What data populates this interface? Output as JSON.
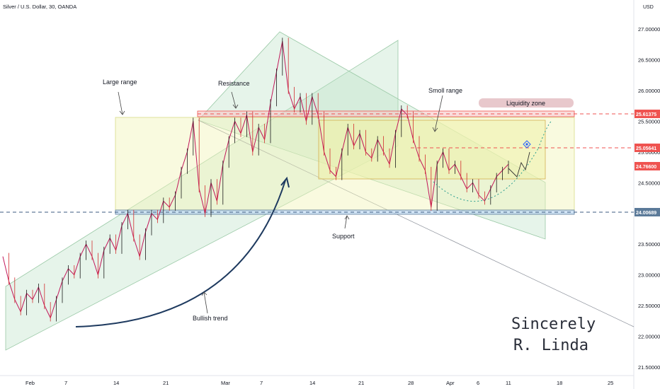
{
  "chart_title": "Silver / U.S. Dollar, 30, OANDA",
  "currency": "USD",
  "signature": {
    "line1": "Sincerely",
    "line2": "R. Linda"
  },
  "chart_data": {
    "type": "line",
    "title": "Silver / U.S. Dollar, 30, OANDA",
    "x_ticks": [
      "Feb",
      "7",
      "14",
      "21",
      "Mar",
      "7",
      "14",
      "21",
      "28",
      "Apr",
      "6",
      "11",
      "18",
      "25"
    ],
    "y_ticks": [
      "27.00000",
      "26.50000",
      "26.00000",
      "25.50000",
      "25.00000",
      "24.50000",
      "24.00000",
      "23.50000",
      "23.00000",
      "22.50000",
      "22.00000",
      "21.50000"
    ],
    "ylim": [
      21.5,
      27.0
    ],
    "price_labels": [
      {
        "value": 25.61375,
        "text": "25.61375",
        "color": "#ef5350"
      },
      {
        "value": 25.05641,
        "text": "25.05641",
        "color": "#ef5350"
      },
      {
        "value": 24.766,
        "text": "24.76600",
        "color": "#ef5350"
      },
      {
        "value": 24.00689,
        "text": "24.00689",
        "color": "#5b7a99"
      }
    ],
    "series": [
      {
        "values": [
          23.3,
          22.9,
          22.6,
          22.4,
          22.7,
          22.6,
          22.8,
          22.5,
          22.3,
          22.6,
          22.9,
          23.1,
          23.0,
          23.3,
          23.5,
          23.3,
          23.0,
          23.4,
          23.6,
          23.4,
          23.8,
          24.0,
          23.6,
          23.3,
          23.7,
          24.0,
          23.9,
          24.2,
          24.1,
          24.3,
          24.7,
          25.0,
          25.5,
          24.4,
          24.0,
          24.5,
          24.2,
          24.8,
          25.2,
          25.5,
          25.3,
          25.6,
          25.0,
          25.4,
          25.2,
          25.8,
          26.3,
          26.8,
          26.0,
          25.7,
          25.9,
          25.5,
          25.9,
          25.6,
          25.0,
          24.7,
          24.6,
          25.0,
          25.4,
          25.1,
          25.3,
          25.0,
          24.9,
          25.2,
          25.0,
          24.8,
          25.3,
          25.7,
          25.6,
          25.2,
          24.9,
          24.7,
          24.1,
          24.8,
          25.0,
          24.7,
          24.8,
          24.6,
          24.4,
          24.5,
          24.3,
          24.2,
          24.4,
          24.6,
          24.7,
          24.8
        ]
      }
    ],
    "annotations": [
      {
        "text": "Large range"
      },
      {
        "text": "Resistance"
      },
      {
        "text": "Smoll range"
      },
      {
        "text": "Liquidity zone"
      },
      {
        "text": "Support"
      },
      {
        "text": "Bullish trend"
      }
    ],
    "grid": false,
    "legend": "none"
  }
}
